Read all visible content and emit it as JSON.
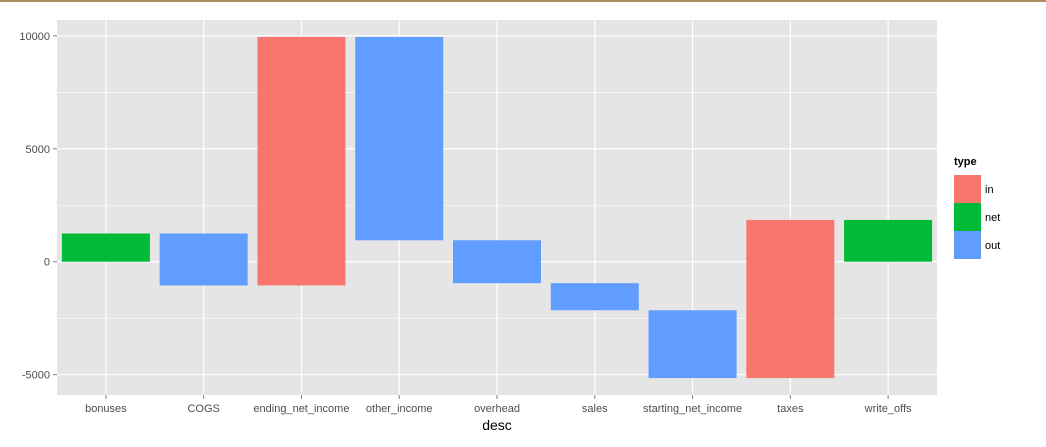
{
  "chart_data": {
    "type": "bar",
    "subtype": "waterfall",
    "title": "",
    "xlabel": "desc",
    "ylabel": "",
    "categories": [
      "bonuses",
      "COGS",
      "ending_net_income",
      "other_income",
      "overhead",
      "sales",
      "starting_net_income",
      "taxes",
      "write_offs"
    ],
    "bars": [
      {
        "category": "bonuses",
        "type": "net",
        "start": 0,
        "end": 1250
      },
      {
        "category": "COGS",
        "type": "out",
        "start": 1250,
        "end": -1050
      },
      {
        "category": "ending_net_income",
        "type": "in",
        "start": -1050,
        "end": 9950
      },
      {
        "category": "other_income",
        "type": "out",
        "start": 9950,
        "end": 950
      },
      {
        "category": "overhead",
        "type": "out",
        "start": 950,
        "end": -950
      },
      {
        "category": "sales",
        "type": "out",
        "start": -950,
        "end": -2150
      },
      {
        "category": "starting_net_income",
        "type": "out",
        "start": -2150,
        "end": -5150
      },
      {
        "category": "taxes",
        "type": "in",
        "start": -5150,
        "end": 1850
      },
      {
        "category": "write_offs",
        "type": "net",
        "start": 0,
        "end": 1850
      }
    ],
    "yticks": [
      -5000,
      0,
      5000,
      10000
    ],
    "ylim": [
      -5900,
      10700
    ],
    "grid": true,
    "legend": {
      "title": "type",
      "placement": "right",
      "items": [
        {
          "label": "in",
          "color": "#f8766d"
        },
        {
          "label": "net",
          "color": "#00ba38"
        },
        {
          "label": "out",
          "color": "#619cff"
        }
      ]
    },
    "colors": {
      "in": "#f8766d",
      "net": "#00ba38",
      "out": "#619cff",
      "panel": "#e5e5e5",
      "grid": "#ffffff"
    }
  }
}
